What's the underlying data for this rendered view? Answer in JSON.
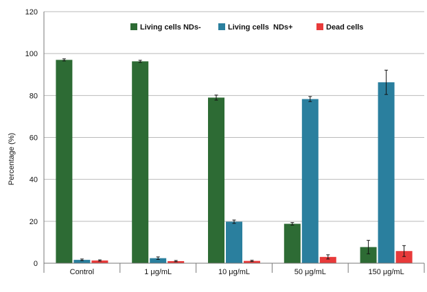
{
  "chart_data": {
    "type": "bar",
    "ylabel": "Percentage (%)",
    "xlabel": "",
    "ylim": [
      0,
      120
    ],
    "yticks": [
      0,
      20,
      40,
      60,
      80,
      100,
      120
    ],
    "grid": true,
    "legend_position": "top-right",
    "categories": [
      "Control",
      "1 μg/mL",
      "10 μg/mL",
      "50 μg/mL",
      "150 μg/mL"
    ],
    "series": [
      {
        "name": "Living cells NDs-",
        "color": "#2d6b34",
        "values": [
          97,
          96.3,
          79,
          18.8,
          7.7
        ],
        "errors": [
          0.5,
          0.5,
          1.2,
          0.6,
          3.2
        ]
      },
      {
        "name": "Living cells  NDs+",
        "color": "#2a7f9e",
        "values": [
          1.6,
          2.4,
          19.8,
          78.3,
          86.3
        ],
        "errors": [
          0.4,
          0.6,
          0.8,
          1.2,
          5.8
        ]
      },
      {
        "name": "Dead cells",
        "color": "#e83a3a",
        "values": [
          1.3,
          1.0,
          1.1,
          3.0,
          5.8
        ],
        "errors": [
          0.3,
          0.3,
          0.3,
          1.0,
          2.6
        ]
      }
    ]
  }
}
